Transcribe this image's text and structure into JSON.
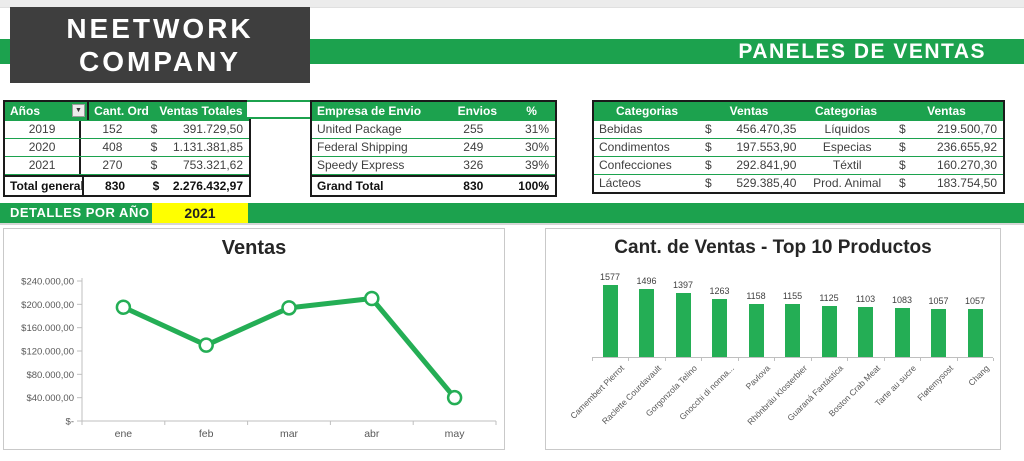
{
  "header": {
    "logo_line1": "NEETWORK",
    "logo_line2": "COMPANY",
    "banner_title": "PANELES DE VENTAS"
  },
  "colors": {
    "accent_green": "#1CA24E",
    "chart_green": "#24AE55",
    "logo_gray": "#3E3E3E",
    "highlight_yellow": "#FFFF00",
    "top_strip_gray": "#ECECEC",
    "axis_gray": "#BFBFBF",
    "table_border_black": "#1A1A1A"
  },
  "tables": {
    "years": {
      "headers": [
        "Años",
        "Cant. Ord",
        "Ventas Totales"
      ],
      "filter_icon": "▼",
      "rows": [
        {
          "year": "2019",
          "orders": "152",
          "currency": "$",
          "total": "391.729,50"
        },
        {
          "year": "2020",
          "orders": "408",
          "currency": "$",
          "total": "1.131.381,85"
        },
        {
          "year": "2021",
          "orders": "270",
          "currency": "$",
          "total": "753.321,62"
        }
      ],
      "total_row": {
        "label": "Total general",
        "orders": "830",
        "currency": "$",
        "total": "2.276.432,97"
      }
    },
    "shipping": {
      "headers": [
        "Empresa de Envio",
        "Envios",
        "%"
      ],
      "rows": [
        {
          "company": "United Package",
          "shipments": "255",
          "pct": "31%"
        },
        {
          "company": "Federal Shipping",
          "shipments": "249",
          "pct": "30%"
        },
        {
          "company": "Speedy Express",
          "shipments": "326",
          "pct": "39%"
        }
      ],
      "total_row": {
        "label": "Grand Total",
        "shipments": "830",
        "pct": "100%"
      }
    },
    "categories": {
      "headers": [
        "Categorias",
        "Ventas",
        "Categorias",
        "Ventas"
      ],
      "rows": [
        {
          "cat1": "Bebidas",
          "cur1": "$",
          "val1": "456.470,35",
          "cat2": "Líquidos",
          "cur2": "$",
          "val2": "219.500,70"
        },
        {
          "cat1": "Condimentos",
          "cur1": "$",
          "val1": "197.553,90",
          "cat2": "Especias",
          "cur2": "$",
          "val2": "236.655,92"
        },
        {
          "cat1": "Confecciones",
          "cur1": "$",
          "val1": "292.841,90",
          "cat2": "Téxtil",
          "cur2": "$",
          "val2": "160.270,30"
        },
        {
          "cat1": "Lácteos",
          "cur1": "$",
          "val1": "529.385,40",
          "cat2": "Prod. Animal",
          "cur2": "$",
          "val2": "183.754,50"
        }
      ]
    }
  },
  "details": {
    "label": "DETALLES POR AÑO",
    "selected_year": "2021"
  },
  "chart_data": [
    {
      "type": "line",
      "title": "Ventas",
      "x": [
        "ene",
        "feb",
        "mar",
        "abr",
        "may"
      ],
      "values": [
        195000,
        130000,
        194000,
        210000,
        40000
      ],
      "ylim": [
        0,
        240000
      ],
      "ytick_step": 40000,
      "ytick_labels": [
        "$240.000,00",
        "$200.000,00",
        "$160.000,00",
        "$120.000,00",
        "$80.000,00",
        "$40.000,00",
        "$-"
      ],
      "grid": false,
      "legend": "none",
      "line_color": "#24AE55",
      "marker": "white-circle-green-ring"
    },
    {
      "type": "bar",
      "title": "Cant. de Ventas - Top 10 Productos",
      "categories": [
        "Camembert Pierrot",
        "Raclette Courdavault",
        "Gorgonzola Telino",
        "Gnocchi di nonna...",
        "Pavlova",
        "Rhönbräu Klosterbier",
        "Guaraná Fantástica",
        "Boston Crab Meat",
        "Tarte au sucre",
        "Fløtemysost",
        "Chang"
      ],
      "values": [
        1577,
        1496,
        1397,
        1263,
        1158,
        1155,
        1125,
        1103,
        1083,
        1057,
        1057
      ],
      "ylim": [
        0,
        1600
      ],
      "grid": false,
      "legend": "none",
      "data_labels": true,
      "bar_color": "#24AE55"
    }
  ]
}
